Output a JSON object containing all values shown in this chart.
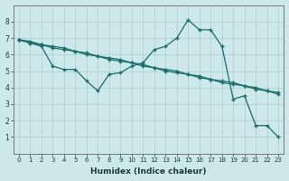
{
  "xlabel": "Humidex (Indice chaleur)",
  "bg_color": "#cce8ea",
  "grid_color": "#aacccc",
  "line_color": "#1a6b6b",
  "xlim": [
    -0.5,
    23.5
  ],
  "ylim": [
    0,
    9
  ],
  "xticks": [
    0,
    1,
    2,
    3,
    4,
    5,
    6,
    7,
    8,
    9,
    10,
    11,
    12,
    13,
    14,
    15,
    16,
    17,
    18,
    19,
    20,
    21,
    22,
    23
  ],
  "yticks": [
    1,
    2,
    3,
    4,
    5,
    6,
    7,
    8
  ],
  "line1_x": [
    0,
    1,
    2,
    3,
    4,
    5,
    6,
    7,
    8,
    9,
    10,
    11,
    12,
    13,
    14,
    15,
    16,
    17,
    18,
    19,
    20,
    21,
    22,
    23
  ],
  "line1_y": [
    6.9,
    6.7,
    6.6,
    6.4,
    6.3,
    6.2,
    6.0,
    5.9,
    5.7,
    5.6,
    5.5,
    5.3,
    5.2,
    5.0,
    4.9,
    4.8,
    4.6,
    4.5,
    4.3,
    4.2,
    4.1,
    3.9,
    3.8,
    3.6
  ],
  "line2_x": [
    0,
    1,
    2,
    3,
    4,
    5,
    6,
    7,
    8,
    9,
    10,
    11,
    12,
    13,
    14,
    15,
    16,
    17,
    18,
    19,
    20,
    21,
    22,
    23
  ],
  "line2_y": [
    6.9,
    6.8,
    6.6,
    6.5,
    6.4,
    6.2,
    6.1,
    5.9,
    5.8,
    5.7,
    5.5,
    5.4,
    5.2,
    5.1,
    5.0,
    4.8,
    4.7,
    4.5,
    4.4,
    4.3,
    4.1,
    4.0,
    3.8,
    3.7
  ],
  "line3_x": [
    0,
    1,
    2,
    3,
    4,
    5,
    6,
    7,
    8,
    9,
    10,
    11,
    12,
    13,
    14,
    15,
    16,
    17,
    18,
    19,
    20,
    21,
    22,
    23
  ],
  "line3_y": [
    6.9,
    6.7,
    6.5,
    5.3,
    5.1,
    5.1,
    4.4,
    3.8,
    4.8,
    4.9,
    5.3,
    5.5,
    6.3,
    6.5,
    7.0,
    8.1,
    7.5,
    7.5,
    6.5,
    3.3,
    3.5,
    1.7,
    1.7,
    1.0
  ],
  "font_size_tick": 5.0,
  "font_size_xlabel": 6.5
}
